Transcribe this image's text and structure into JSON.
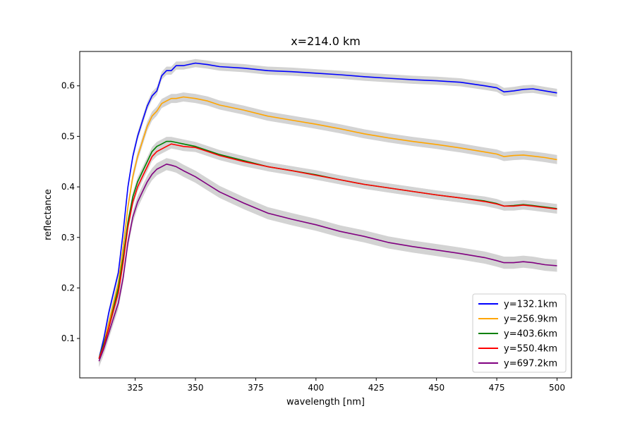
{
  "chart_data": {
    "type": "line",
    "title": "x=214.0 km",
    "xlabel": "wavelength [nm]",
    "ylabel": "reflectance",
    "xlim": [
      302,
      506
    ],
    "ylim": [
      0.022,
      0.668
    ],
    "xticks": [
      325,
      350,
      375,
      400,
      425,
      450,
      475,
      500
    ],
    "yticks": [
      0.1,
      0.2,
      0.3,
      0.4,
      0.5,
      0.6
    ],
    "grid": false,
    "legend_position": "lower-right",
    "band_color": "#d3d3d3",
    "series": [
      {
        "name": "y=132.1km",
        "color": "#0000ff",
        "x": [
          310,
          312,
          314,
          316,
          318,
          320,
          322,
          324,
          326,
          328,
          330,
          332,
          334,
          336,
          338,
          340,
          342,
          345,
          350,
          355,
          360,
          370,
          380,
          390,
          400,
          410,
          420,
          430,
          440,
          450,
          460,
          470,
          475,
          478,
          482,
          486,
          490,
          495,
          500
        ],
        "y": [
          0.06,
          0.1,
          0.15,
          0.19,
          0.23,
          0.31,
          0.4,
          0.46,
          0.5,
          0.53,
          0.56,
          0.58,
          0.59,
          0.62,
          0.63,
          0.63,
          0.64,
          0.64,
          0.645,
          0.642,
          0.638,
          0.635,
          0.63,
          0.628,
          0.625,
          0.622,
          0.618,
          0.615,
          0.612,
          0.61,
          0.607,
          0.6,
          0.596,
          0.588,
          0.59,
          0.593,
          0.594,
          0.59,
          0.586
        ],
        "band": 0.008
      },
      {
        "name": "y=256.9km",
        "color": "#ffa500",
        "x": [
          310,
          312,
          314,
          316,
          318,
          320,
          322,
          324,
          326,
          328,
          330,
          332,
          334,
          336,
          338,
          340,
          342,
          345,
          350,
          355,
          360,
          370,
          380,
          390,
          400,
          410,
          420,
          430,
          440,
          450,
          460,
          470,
          475,
          478,
          482,
          486,
          490,
          495,
          500
        ],
        "y": [
          0.06,
          0.09,
          0.13,
          0.17,
          0.21,
          0.28,
          0.36,
          0.42,
          0.46,
          0.49,
          0.52,
          0.54,
          0.55,
          0.565,
          0.57,
          0.575,
          0.575,
          0.578,
          0.575,
          0.57,
          0.562,
          0.552,
          0.54,
          0.532,
          0.524,
          0.515,
          0.505,
          0.497,
          0.49,
          0.484,
          0.477,
          0.469,
          0.465,
          0.46,
          0.462,
          0.463,
          0.461,
          0.458,
          0.454
        ],
        "band": 0.009
      },
      {
        "name": "y=403.6km",
        "color": "#008000",
        "x": [
          310,
          312,
          314,
          316,
          318,
          320,
          322,
          324,
          326,
          328,
          330,
          332,
          334,
          336,
          338,
          340,
          342,
          345,
          350,
          355,
          360,
          370,
          380,
          390,
          400,
          410,
          420,
          430,
          440,
          450,
          460,
          470,
          475,
          478,
          482,
          486,
          490,
          495,
          500
        ],
        "y": [
          0.06,
          0.09,
          0.12,
          0.16,
          0.2,
          0.26,
          0.33,
          0.38,
          0.41,
          0.43,
          0.45,
          0.47,
          0.48,
          0.485,
          0.49,
          0.49,
          0.488,
          0.485,
          0.48,
          0.472,
          0.464,
          0.452,
          0.44,
          0.432,
          0.424,
          0.414,
          0.405,
          0.398,
          0.391,
          0.384,
          0.378,
          0.372,
          0.367,
          0.362,
          0.363,
          0.365,
          0.363,
          0.36,
          0.357
        ],
        "band": 0.009
      },
      {
        "name": "y=550.4km",
        "color": "#ff0000",
        "x": [
          310,
          312,
          314,
          316,
          318,
          320,
          322,
          324,
          326,
          328,
          330,
          332,
          334,
          336,
          338,
          340,
          342,
          345,
          350,
          355,
          360,
          370,
          380,
          390,
          400,
          410,
          420,
          430,
          440,
          450,
          460,
          470,
          475,
          478,
          482,
          486,
          490,
          495,
          500
        ],
        "y": [
          0.06,
          0.085,
          0.12,
          0.155,
          0.19,
          0.25,
          0.32,
          0.37,
          0.4,
          0.42,
          0.44,
          0.46,
          0.47,
          0.475,
          0.48,
          0.485,
          0.483,
          0.48,
          0.478,
          0.47,
          0.462,
          0.45,
          0.44,
          0.432,
          0.423,
          0.414,
          0.405,
          0.398,
          0.391,
          0.384,
          0.378,
          0.371,
          0.366,
          0.362,
          0.362,
          0.364,
          0.362,
          0.359,
          0.356
        ],
        "band": 0.009
      },
      {
        "name": "y=697.2km",
        "color": "#800080",
        "x": [
          310,
          312,
          314,
          316,
          318,
          320,
          322,
          324,
          326,
          328,
          330,
          332,
          334,
          336,
          338,
          340,
          342,
          345,
          350,
          355,
          360,
          370,
          380,
          390,
          400,
          410,
          420,
          430,
          440,
          450,
          460,
          470,
          475,
          478,
          482,
          486,
          490,
          495,
          500
        ],
        "y": [
          0.055,
          0.08,
          0.11,
          0.14,
          0.17,
          0.22,
          0.29,
          0.34,
          0.37,
          0.39,
          0.41,
          0.425,
          0.435,
          0.44,
          0.445,
          0.443,
          0.44,
          0.432,
          0.42,
          0.405,
          0.39,
          0.368,
          0.348,
          0.336,
          0.325,
          0.312,
          0.302,
          0.29,
          0.282,
          0.275,
          0.268,
          0.26,
          0.254,
          0.25,
          0.25,
          0.252,
          0.25,
          0.246,
          0.244
        ],
        "band": 0.012
      }
    ]
  }
}
